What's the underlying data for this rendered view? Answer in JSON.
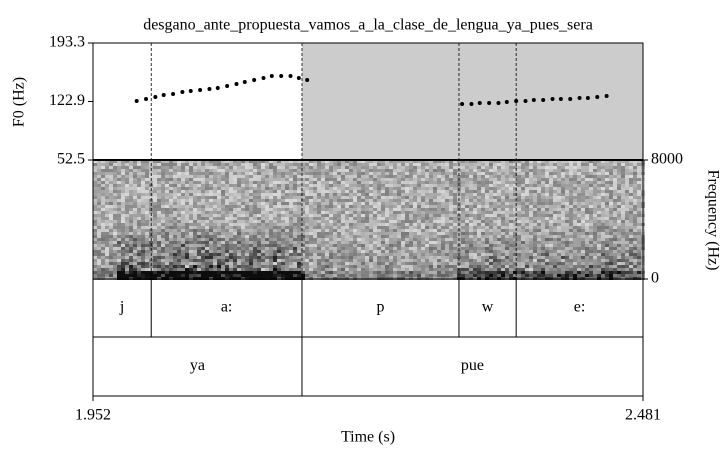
{
  "chart_data": {
    "type": "scatter",
    "title": "desgano_ante_propuesta_vamos_a_la_clase_de_lengua_ya_pues_sera",
    "xlabel": "Time (s)",
    "ylabel": "F0 (Hz)",
    "y2label": "Frequency (Hz)",
    "xlim": [
      1.952,
      2.481
    ],
    "xticks": [
      1.952,
      2.481
    ],
    "ylim": [
      52.5,
      193.3
    ],
    "yticks": [
      52.5,
      122.9,
      193.3
    ],
    "y2lim": [
      0,
      8000
    ],
    "y2ticks": [
      0,
      8000
    ],
    "color": "#000000",
    "shade": [
      2.153,
      2.481
    ],
    "x": [
      1.994,
      2.003,
      2.012,
      2.02,
      2.029,
      2.038,
      2.046,
      2.055,
      2.064,
      2.072,
      2.081,
      2.09,
      2.098,
      2.107,
      2.116,
      2.124,
      2.133,
      2.142,
      2.15,
      2.158,
      2.307,
      2.316,
      2.324,
      2.333,
      2.342,
      2.35,
      2.359,
      2.368,
      2.376,
      2.385,
      2.394,
      2.402,
      2.411,
      2.42,
      2.428,
      2.437,
      2.446
    ],
    "values": [
      123.5,
      125.9,
      128.3,
      130.7,
      131.9,
      134.3,
      135.5,
      136.7,
      137.9,
      139.1,
      141.6,
      144.0,
      146.4,
      148.8,
      151.2,
      153.6,
      153.6,
      153.6,
      151.2,
      148.8,
      119.9,
      119.9,
      121.1,
      121.1,
      121.1,
      122.3,
      123.5,
      123.5,
      124.7,
      124.7,
      125.9,
      125.9,
      125.9,
      127.1,
      127.1,
      128.3,
      129.5
    ],
    "tiers": [
      {
        "labels": [
          "j",
          "a:",
          "p",
          "w",
          "e:"
        ],
        "boundaries": [
          2.008,
          2.153,
          2.304,
          2.359
        ]
      },
      {
        "labels": [
          "ya",
          "pue"
        ],
        "boundaries": [
          2.153
        ]
      }
    ],
    "dashed_boundaries": [
      2.008,
      2.153,
      2.304,
      2.359
    ]
  }
}
